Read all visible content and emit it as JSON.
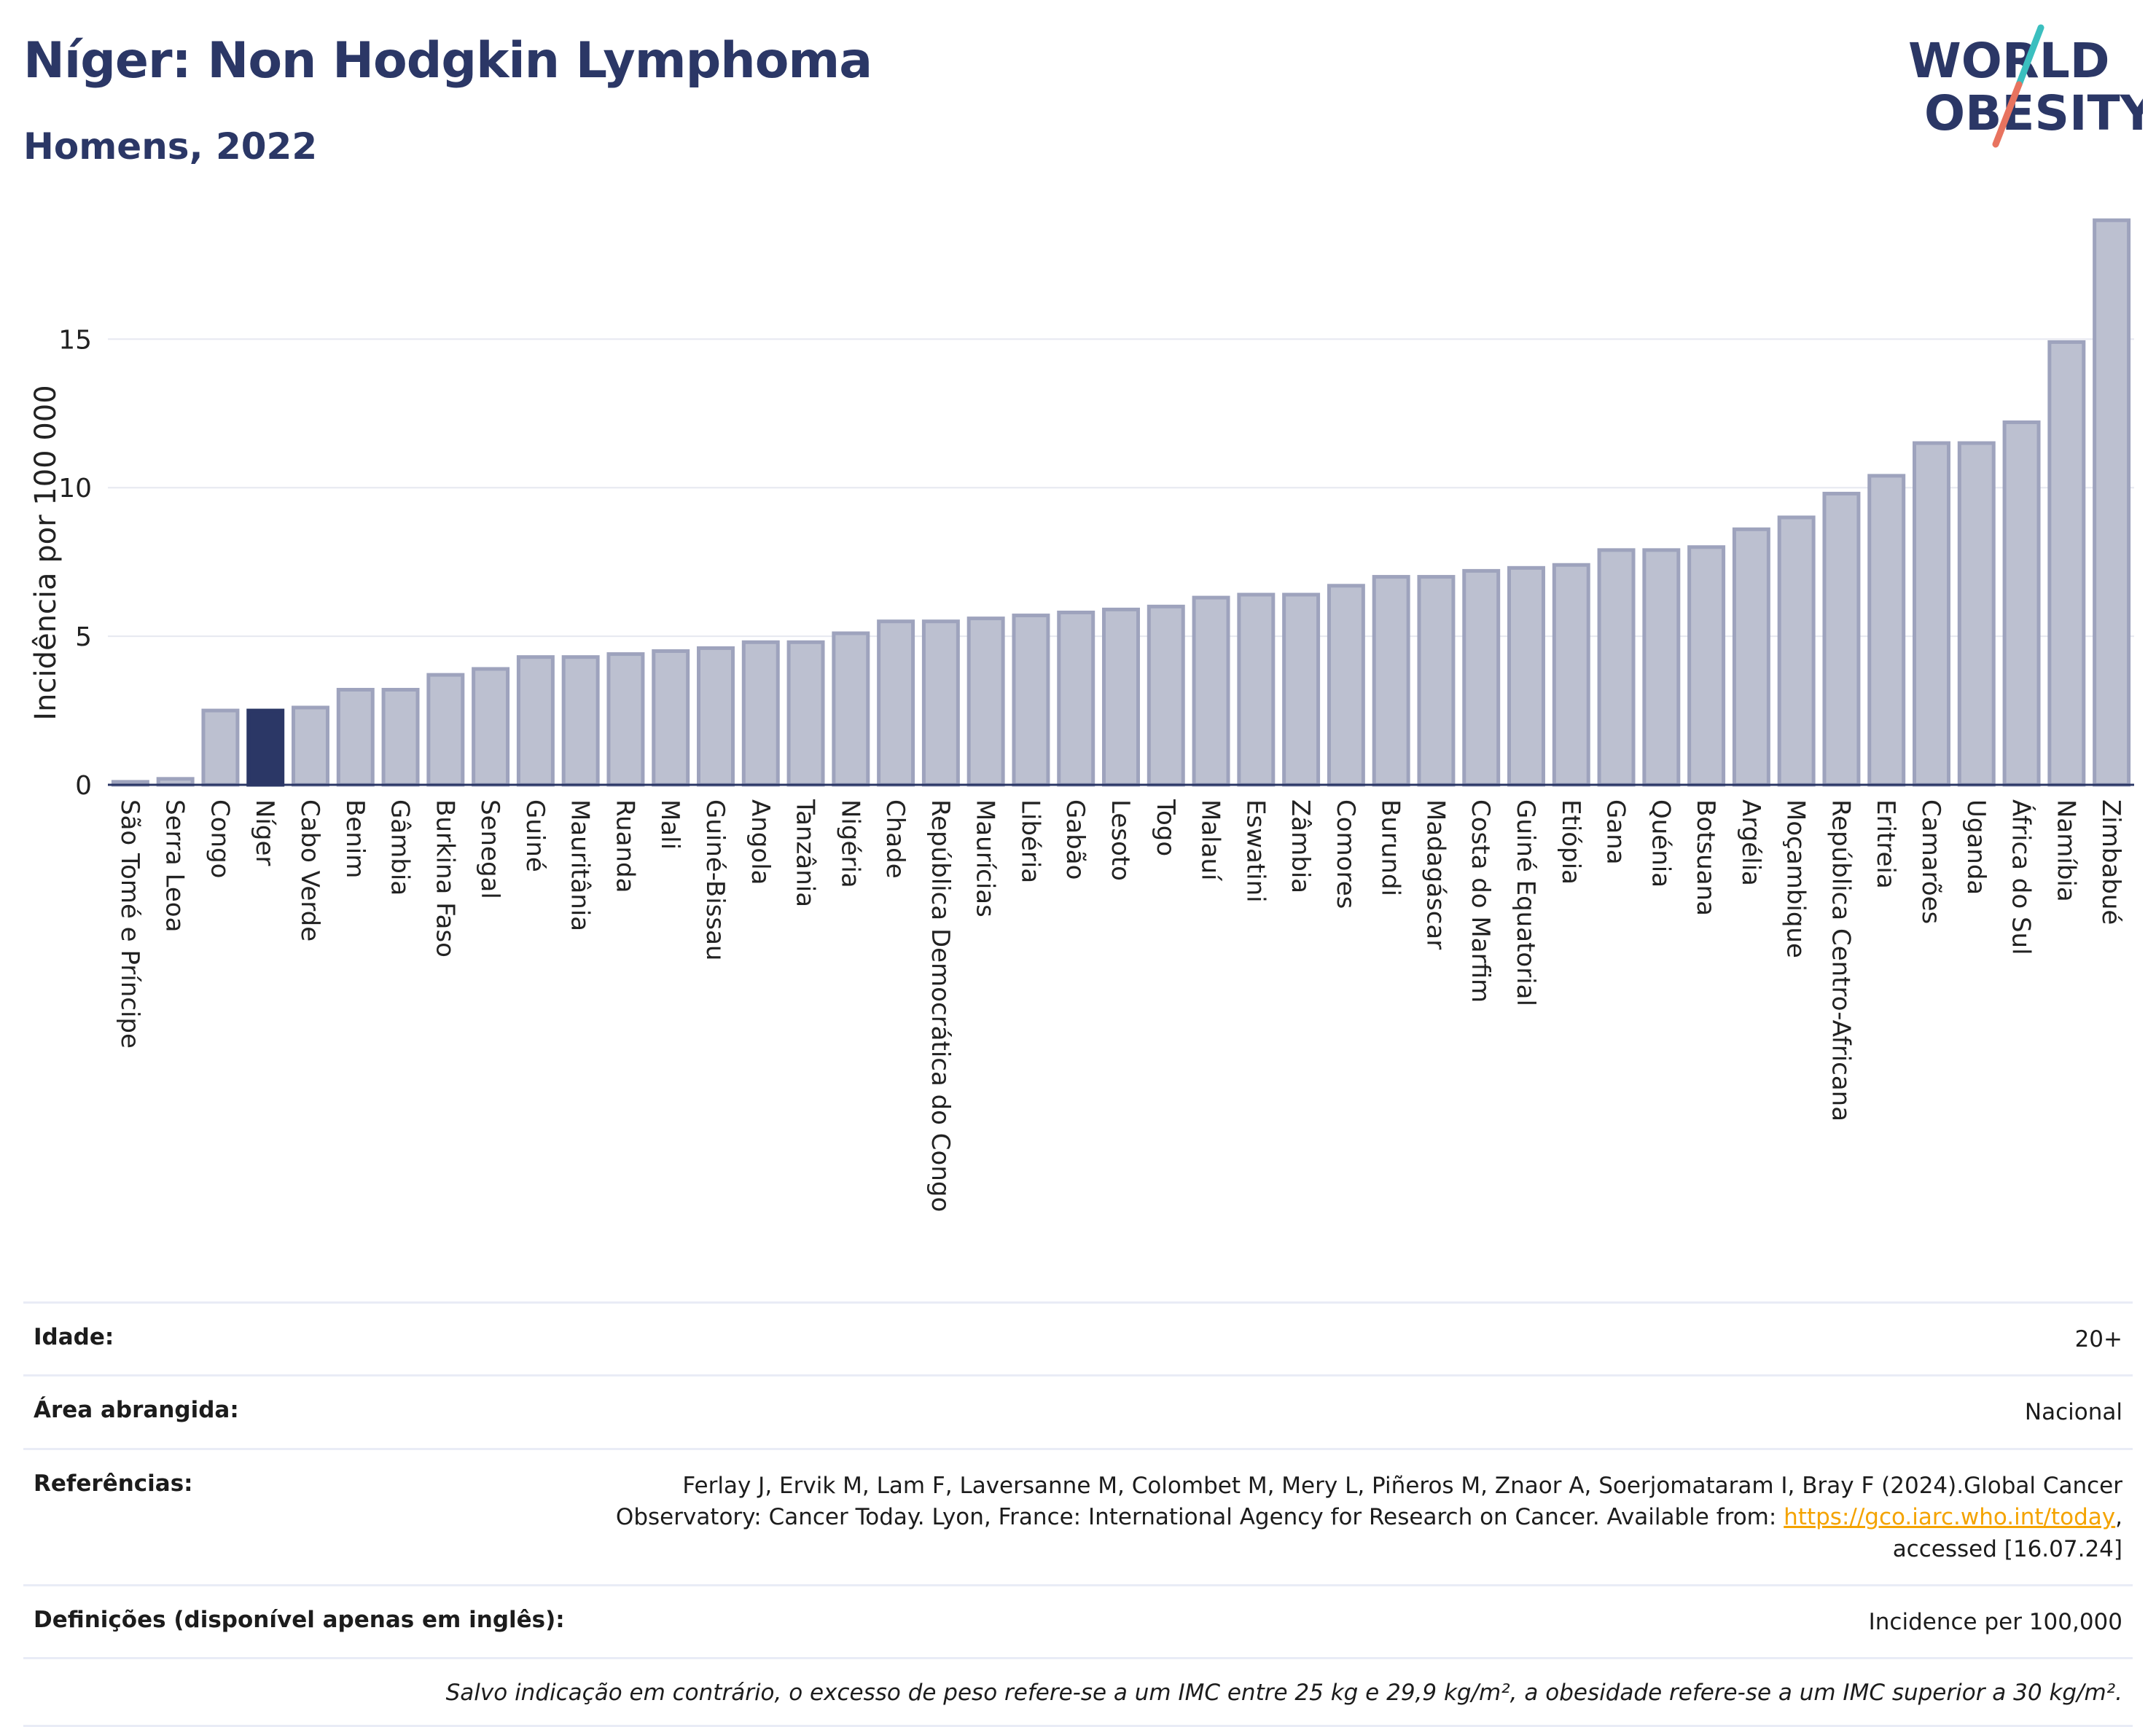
{
  "header": {
    "title": "Níger: Non Hodgkin Lymphoma",
    "subtitle": "Homens, 2022"
  },
  "logo": {
    "line1": "WORLD",
    "line2": "OBESITY",
    "colors": {
      "text": "#2b3766",
      "slash_top": "#3bbfbf",
      "slash_bottom": "#e8735f"
    }
  },
  "colors": {
    "bar": "#bcc0d0",
    "bar_stroke": "#9ea3bd",
    "highlight": "#2b3766",
    "grid": "#e6e8f0",
    "axis": "#2b3766"
  },
  "chart_data": {
    "type": "bar",
    "title": "Níger: Non Hodgkin Lymphoma",
    "subtitle": "Homens, 2022",
    "xlabel": "",
    "ylabel": "Incidência por 100 000",
    "ylim": [
      0,
      19.3
    ],
    "yticks": [
      0,
      5,
      10,
      15
    ],
    "grid": true,
    "highlight": "Níger",
    "categories": [
      "São Tomé e Príncipe",
      "Serra Leoa",
      "Congo",
      "Níger",
      "Cabo Verde",
      "Benim",
      "Gâmbia",
      "Burkina Faso",
      "Senegal",
      "Guiné",
      "Mauritânia",
      "Ruanda",
      "Mali",
      "Guiné-Bissau",
      "Angola",
      "Tanzânia",
      "Nigéria",
      "Chade",
      "República Democrática do Congo",
      "Maurícias",
      "Libéria",
      "Gabão",
      "Lesoto",
      "Togo",
      "Malauí",
      "Eswatini",
      "Zâmbia",
      "Comores",
      "Burundi",
      "Madagáscar",
      "Costa do Marfim",
      "Guiné Equatorial",
      "Etiópia",
      "Gana",
      "Quénia",
      "Botsuana",
      "Argélia",
      "Moçambique",
      "República Centro-Africana",
      "Eritreia",
      "Camarões",
      "Uganda",
      "África do Sul",
      "Namíbia",
      "Zimbabué"
    ],
    "values": [
      0.1,
      0.2,
      2.5,
      2.5,
      2.6,
      3.2,
      3.2,
      3.7,
      3.9,
      4.3,
      4.3,
      4.4,
      4.5,
      4.6,
      4.8,
      4.8,
      5.1,
      5.5,
      5.5,
      5.6,
      5.7,
      5.8,
      5.9,
      6.0,
      6.3,
      6.4,
      6.4,
      6.7,
      7.0,
      7.0,
      7.2,
      7.3,
      7.4,
      7.9,
      7.9,
      8.0,
      8.6,
      9.0,
      9.8,
      10.4,
      11.5,
      11.5,
      12.2,
      14.9,
      19.0
    ]
  },
  "info": {
    "age_label": "Idade:",
    "age_value": "20+",
    "area_label": "Área abrangida:",
    "area_value": "Nacional",
    "refs_label": "Referências:",
    "refs_text_1": "Ferlay J, Ervik M, Lam F, Laversanne M, Colombet M, Mery L, Piñeros M, Znaor A, Soerjomataram I, Bray F (2024).Global Cancer",
    "refs_text_2": "Observatory: Cancer Today. Lyon, France: International Agency for Research on Cancer. Available from: ",
    "refs_link": "https://gco.iarc.who.int/today",
    "refs_text_3": ",",
    "refs_text_4": "accessed [16.07.24]",
    "defs_label": "Definições (disponível apenas em inglês):",
    "defs_value": "Incidence per 100,000",
    "note": "Salvo indicação em contrário, o excesso de peso refere-se a um IMC entre 25 kg e 29,9 kg/m², a obesidade refere-se a um IMC superior a 30 kg/m²."
  }
}
